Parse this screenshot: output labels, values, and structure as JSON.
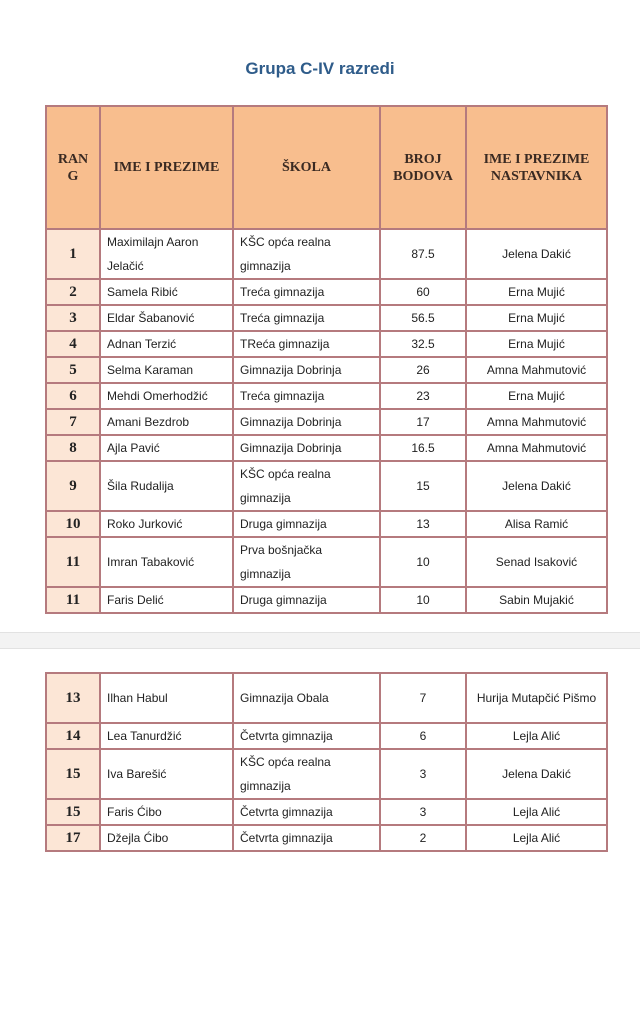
{
  "title": "Grupa C-IV razredi",
  "headers": [
    "RAN G",
    "IME I PREZIME",
    "ŠKOLA",
    "BROJ BODOVA",
    "IME I PREZIME NASTAVNIKA"
  ],
  "colors": {
    "header_bg": "#f8be8e",
    "rank_bg": "#fce6d6",
    "border": "#b57a7e",
    "title": "#2f5c8a"
  },
  "rows_page1": [
    {
      "rank": "1",
      "name": "Maximilajn Aaron Jelačić",
      "school": "KŠC opća realna gimnazija",
      "points": "87.5",
      "teacher": "Jelena Dakić"
    },
    {
      "rank": "2",
      "name": "Samela Ribić",
      "school": "Treća gimnazija",
      "points": "60",
      "teacher": "Erna Mujić"
    },
    {
      "rank": "3",
      "name": "Eldar Šabanović",
      "school": "Treća gimnazija",
      "points": "56.5",
      "teacher": "Erna Mujić"
    },
    {
      "rank": "4",
      "name": "Adnan Terzić",
      "school": "TReća gimnazija",
      "points": "32.5",
      "teacher": "Erna Mujić"
    },
    {
      "rank": "5",
      "name": "Selma Karaman",
      "school": "Gimnazija Dobrinja",
      "points": "26",
      "teacher": "Amna Mahmutović"
    },
    {
      "rank": "6",
      "name": "Mehdi Omerhodžić",
      "school": "Treća gimnazija",
      "points": "23",
      "teacher": "Erna Mujić"
    },
    {
      "rank": "7",
      "name": "Amani Bezdrob",
      "school": "Gimnazija Dobrinja",
      "points": "17",
      "teacher": "Amna Mahmutović"
    },
    {
      "rank": "8",
      "name": "Ajla Pavić",
      "school": "Gimnazija Dobrinja",
      "points": "16.5",
      "teacher": "Amna Mahmutović"
    },
    {
      "rank": "9",
      "name": "Šila Rudalija",
      "school": "KŠC opća realna gimnazija",
      "points": "15",
      "teacher": "Jelena Dakić"
    },
    {
      "rank": "10",
      "name": "Roko Jurković",
      "school": "Druga gimnazija",
      "points": "13",
      "teacher": "Alisa Ramić"
    },
    {
      "rank": "11",
      "name": "Imran Tabaković",
      "school": "Prva bošnjačka gimnazija",
      "points": "10",
      "teacher": "Senad Isaković"
    },
    {
      "rank": "11",
      "name": "Faris Delić",
      "school": "Druga gimnazija",
      "points": "10",
      "teacher": "Sabin Mujakić"
    }
  ],
  "rows_page2": [
    {
      "rank": "13",
      "name": "Ilhan Habul",
      "school": "Gimnazija Obala",
      "points": "7",
      "teacher": "Hurija Mutapčić Pišmo"
    },
    {
      "rank": "14",
      "name": "Lea Tanurdžić",
      "school": "Četvrta gimnazija",
      "points": "6",
      "teacher": "Lejla Alić"
    },
    {
      "rank": "15",
      "name": "Iva Barešić",
      "school": "KŠC opća realna gimnazija",
      "points": "3",
      "teacher": "Jelena Dakić"
    },
    {
      "rank": "15",
      "name": "Faris Ćibo",
      "school": "Četvrta gimnazija",
      "points": "3",
      "teacher": "Lejla Alić"
    },
    {
      "rank": "17",
      "name": "Džejla Ćibo",
      "school": "Četvrta gimnazija",
      "points": "2",
      "teacher": "Lejla Alić"
    }
  ]
}
